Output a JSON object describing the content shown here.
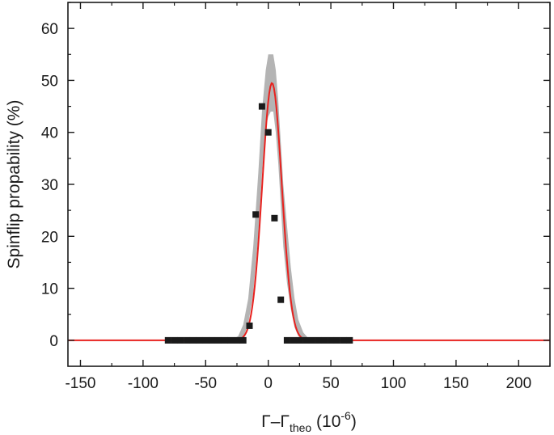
{
  "chart_data": {
    "type": "scatter",
    "xlabel_main": "Γ–Γ",
    "xlabel_sub": "theo",
    "xlabel_units": " (10",
    "xlabel_exp": "-6",
    "xlabel_close": ")",
    "ylabel": "Spinflip propability (%)",
    "xlim": [
      -160,
      225
    ],
    "ylim": [
      -5,
      65
    ],
    "x_ticks": [
      -150,
      -100,
      -50,
      0,
      50,
      100,
      150,
      200
    ],
    "x_tick_labels": [
      "-150",
      "-100",
      "-50",
      "0",
      "50",
      "100",
      "150",
      "200"
    ],
    "y_ticks": [
      0,
      10,
      20,
      30,
      40,
      50,
      60
    ],
    "y_tick_labels": [
      "0",
      "10",
      "20",
      "30",
      "40",
      "50",
      "60"
    ],
    "grid": false,
    "series": [
      {
        "kind": "points",
        "color": "#1a1a1a",
        "x": [
          -80,
          -75,
          -70,
          -65,
          -60,
          -55,
          -50,
          -45,
          -40,
          -35,
          -30,
          -25,
          -20,
          -15,
          -10,
          -5,
          0,
          5,
          10,
          15,
          20,
          25,
          30,
          35,
          40,
          45,
          50,
          55,
          60,
          65
        ],
        "y": [
          0,
          0,
          0,
          0,
          0,
          0,
          0,
          0,
          0,
          0,
          0,
          0,
          0,
          2.8,
          24.2,
          45,
          40,
          23.5,
          7.8,
          0,
          0,
          0,
          0,
          0,
          0,
          0,
          0,
          0,
          0,
          0
        ]
      },
      {
        "kind": "fit-line",
        "color": "#e8211e",
        "amplitude": 49.5,
        "center": 3,
        "sigma": 7.8,
        "x_range": [
          -160,
          225
        ]
      },
      {
        "kind": "confidence-band",
        "color": "#b4b4b4",
        "x": [
          -30,
          -24,
          -20,
          -16,
          -12,
          -8,
          -5,
          -2,
          0,
          2,
          4,
          6,
          8,
          10,
          12,
          15,
          18,
          21,
          24,
          28,
          32,
          38
        ],
        "upper": [
          0,
          0.8,
          3,
          8,
          18,
          32,
          44,
          52,
          55,
          55,
          55,
          52,
          46,
          38,
          30,
          22,
          14,
          8,
          4,
          1.5,
          0.4,
          0
        ],
        "lower": [
          0,
          0,
          0.5,
          3,
          9,
          20,
          32,
          41,
          43,
          44,
          44,
          40,
          34,
          26,
          18,
          11,
          6,
          2.5,
          0.8,
          0,
          0,
          0
        ]
      }
    ]
  }
}
